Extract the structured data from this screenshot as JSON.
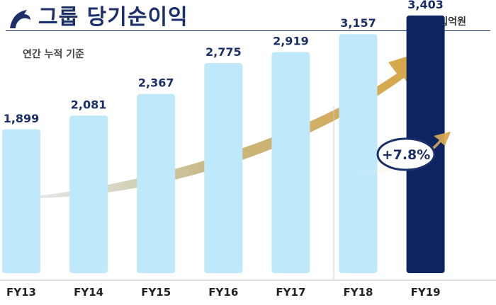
{
  "header": {
    "title": "그룹 당기순이익",
    "unit_label": "단위: 십억원",
    "subtitle": "연간 누적 기준"
  },
  "colors": {
    "title": "#1b2f6b",
    "bar": "#bfe8fb",
    "highlight_bar": "#0e2461",
    "label": "#1b2f6b",
    "arrow": "#d4a84f",
    "badge_border": "#1b2f6b"
  },
  "chart_data": {
    "type": "bar",
    "categories": [
      "FY13",
      "FY14",
      "FY15",
      "FY16",
      "FY17",
      "FY18",
      "FY19"
    ],
    "values": [
      1899,
      2081,
      2367,
      2775,
      2919,
      3157,
      3403
    ],
    "value_labels": [
      "1,899",
      "2,081",
      "2,367",
      "2,775",
      "2,919",
      "3,157",
      "3,403"
    ],
    "highlight_index": 6,
    "growth_label": "+7.8%",
    "title": "그룹 당기순이익",
    "xlabel": "",
    "ylabel": "",
    "grid": false
  }
}
